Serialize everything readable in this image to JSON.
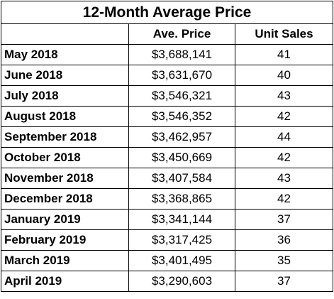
{
  "chart_data": {
    "type": "table",
    "title": "12-Month Average Price",
    "columns": [
      "",
      "Ave. Price",
      "Unit Sales"
    ],
    "rows": [
      {
        "month": "May 2018",
        "ave_price": "$3,688,141",
        "unit_sales": "41"
      },
      {
        "month": "June 2018",
        "ave_price": "$3,631,670",
        "unit_sales": "40"
      },
      {
        "month": "July 2018",
        "ave_price": "$3,546,321",
        "unit_sales": "43"
      },
      {
        "month": "August 2018",
        "ave_price": "$3,546,352",
        "unit_sales": "42"
      },
      {
        "month": "September 2018",
        "ave_price": "$3,462,957",
        "unit_sales": "44"
      },
      {
        "month": "October 2018",
        "ave_price": "$3,450,669",
        "unit_sales": "42"
      },
      {
        "month": "November 2018",
        "ave_price": "$3,407,584",
        "unit_sales": "43"
      },
      {
        "month": "December 2018",
        "ave_price": "$3,368,865",
        "unit_sales": "42"
      },
      {
        "month": "January 2019",
        "ave_price": "$3,341,144",
        "unit_sales": "37"
      },
      {
        "month": "February 2019",
        "ave_price": "$3,317,425",
        "unit_sales": "36"
      },
      {
        "month": "March 2019",
        "ave_price": "$3,401,495",
        "unit_sales": "35"
      },
      {
        "month": "April 2019",
        "ave_price": "$3,290,603",
        "unit_sales": "37"
      }
    ]
  }
}
